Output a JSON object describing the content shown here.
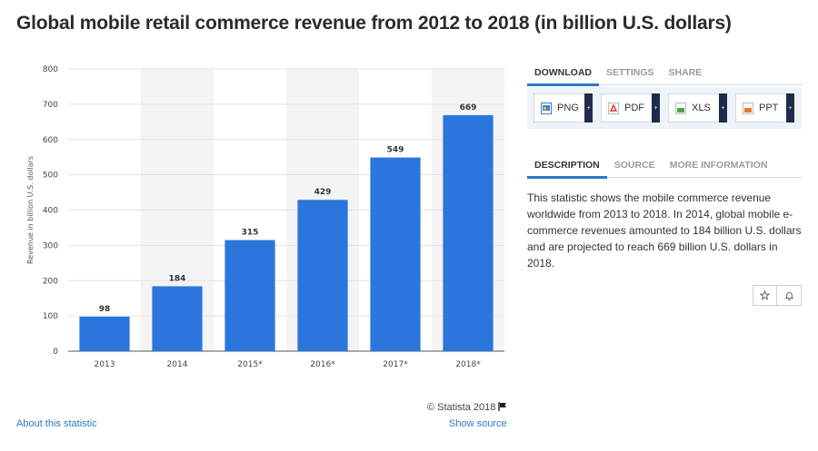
{
  "page": {
    "title": "Global mobile retail commerce revenue from 2012 to 2018 (in billion U.S. dollars)"
  },
  "chart_data": {
    "type": "bar",
    "title": "",
    "xlabel": "",
    "ylabel": "Revenue in billion U.S. dollars",
    "categories": [
      "2013",
      "2014",
      "2015*",
      "2016*",
      "2017*",
      "2018*"
    ],
    "values": [
      98,
      184,
      315,
      429,
      549,
      669
    ],
    "ylim": [
      0,
      800
    ],
    "yticks": [
      0,
      100,
      200,
      300,
      400,
      500,
      600,
      700,
      800
    ],
    "bar_color": "#2a76dd",
    "grid": true,
    "data_labels": true
  },
  "footer": {
    "credit": "© Statista 2018",
    "about_link": "About this statistic",
    "source_link": "Show source"
  },
  "sidebar": {
    "top_tabs": [
      "DOWNLOAD",
      "SETTINGS",
      "SHARE"
    ],
    "downloads": [
      {
        "label": "PNG",
        "icon": "png-file-icon",
        "color": "#3b7fd0"
      },
      {
        "label": "PDF",
        "icon": "pdf-file-icon",
        "color": "#d9342b"
      },
      {
        "label": "XLS",
        "icon": "xls-file-icon",
        "color": "#4aa546"
      },
      {
        "label": "PPT",
        "icon": "ppt-file-icon",
        "color": "#e6792b"
      }
    ],
    "desc_tabs": [
      "DESCRIPTION",
      "SOURCE",
      "MORE INFORMATION"
    ],
    "description": "This statistic shows the mobile commerce revenue worldwide from 2013 to 2018. In 2014, global mobile e-commerce revenues amounted to 184 billion U.S. dollars and are projected to reach 669 billion U.S. dollars in 2018.",
    "icons": [
      "star-icon",
      "bell-icon"
    ]
  }
}
